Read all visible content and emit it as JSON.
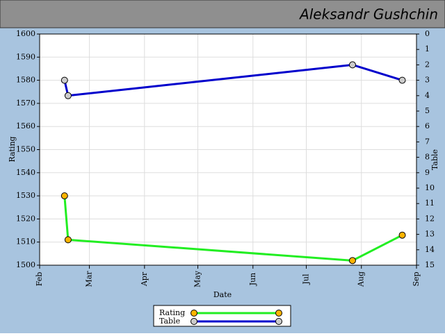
{
  "chart_data": {
    "type": "line",
    "title": "Aleksandr Gushchin",
    "x_label": "Date",
    "y_label": "Rating",
    "y2_label": "Table",
    "xlim": [
      0,
      212
    ],
    "xticks": [
      {
        "value": 0,
        "label": "Feb"
      },
      {
        "value": 28,
        "label": "Mar"
      },
      {
        "value": 59,
        "label": "Apr"
      },
      {
        "value": 89,
        "label": "May"
      },
      {
        "value": 120,
        "label": "Jun"
      },
      {
        "value": 150,
        "label": "Jul"
      },
      {
        "value": 181,
        "label": "Aug"
      },
      {
        "value": 212,
        "label": "Sep"
      }
    ],
    "ylim": [
      1500,
      1600
    ],
    "yticks": [
      1500,
      1510,
      1520,
      1530,
      1540,
      1550,
      1560,
      1570,
      1580,
      1590,
      1600
    ],
    "y2lim": [
      15,
      0
    ],
    "y2ticks": [
      0,
      1,
      2,
      3,
      4,
      5,
      6,
      7,
      8,
      9,
      10,
      11,
      12,
      13,
      14,
      15
    ],
    "grid": true,
    "x": [
      14,
      16,
      176,
      204
    ],
    "series": [
      {
        "name": "Rating",
        "color": "#22ee22",
        "marker_color": "#ffb400",
        "values": [
          1530,
          1511,
          1502,
          1513
        ]
      },
      {
        "name": "Table",
        "color": "#0000cc",
        "marker_color": "#cccccc",
        "axis": "y2",
        "values": [
          3,
          4,
          2,
          3
        ]
      }
    ]
  }
}
